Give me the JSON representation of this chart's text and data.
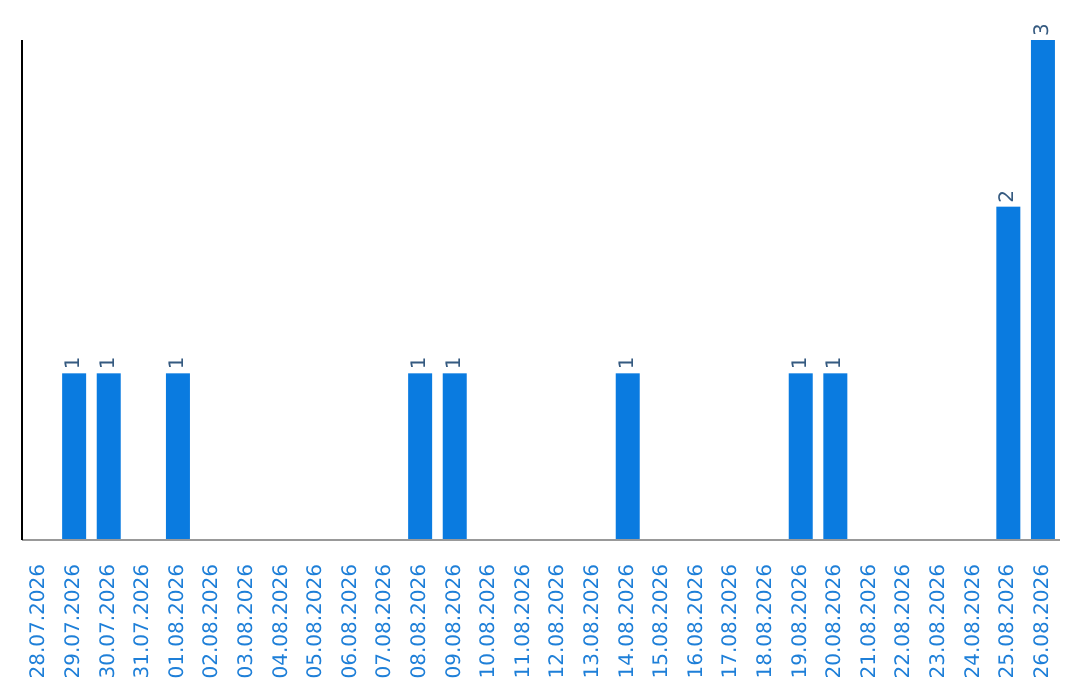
{
  "chart_data": {
    "type": "bar",
    "categories": [
      "28.07.2026",
      "29.07.2026",
      "30.07.2026",
      "31.07.2026",
      "01.08.2026",
      "02.08.2026",
      "03.08.2026",
      "04.08.2026",
      "05.08.2026",
      "06.08.2026",
      "07.08.2026",
      "08.08.2026",
      "09.08.2026",
      "10.08.2026",
      "11.08.2026",
      "12.08.2026",
      "13.08.2026",
      "14.08.2026",
      "15.08.2026",
      "16.08.2026",
      "17.08.2026",
      "18.08.2026",
      "19.08.2026",
      "20.08.2026",
      "21.08.2026",
      "22.08.2026",
      "23.08.2026",
      "24.08.2026",
      "25.08.2026",
      "26.08.2026"
    ],
    "values": [
      0,
      1,
      1,
      0,
      1,
      0,
      0,
      0,
      0,
      0,
      0,
      1,
      1,
      0,
      0,
      0,
      0,
      1,
      0,
      0,
      0,
      0,
      1,
      1,
      0,
      0,
      0,
      0,
      2,
      3
    ],
    "value_labels": [
      null,
      "1",
      "1",
      null,
      "1",
      null,
      null,
      null,
      null,
      null,
      null,
      "1",
      "1",
      null,
      null,
      null,
      null,
      "1",
      null,
      null,
      null,
      null,
      "1",
      "1",
      null,
      null,
      null,
      null,
      "2",
      "3"
    ],
    "color": "#0a7be0",
    "grid": false
  }
}
